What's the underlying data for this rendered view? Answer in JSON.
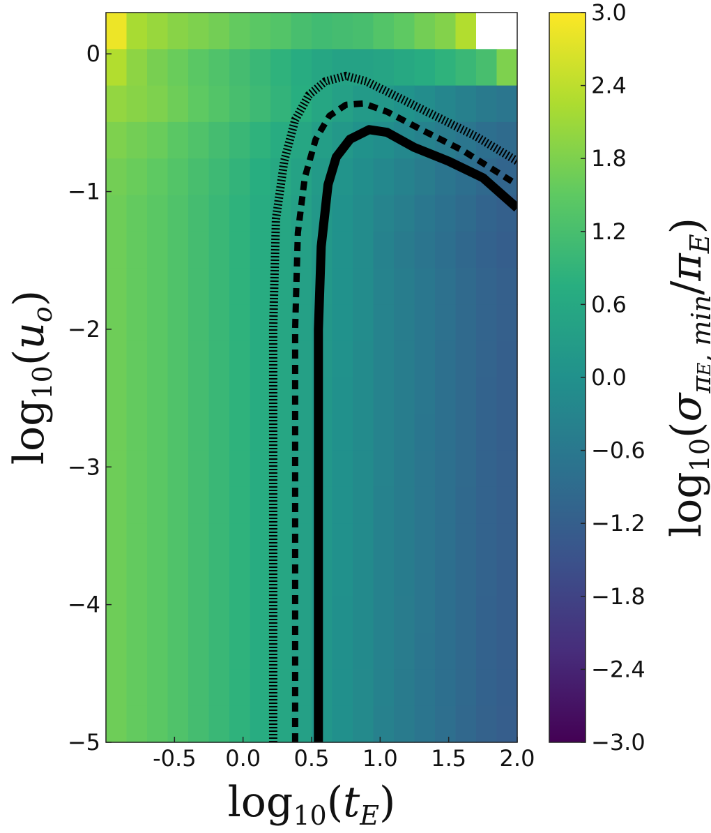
{
  "chart_data": {
    "type": "heatmap",
    "title": "",
    "xlabel": "log10(tE)",
    "ylabel": "log10(uo)",
    "colorbar_label": "log10(σπE,min/πE)",
    "x_range": [
      -1.0,
      2.0
    ],
    "y_range": [
      -5.0,
      0.3
    ],
    "x_ticks": [
      "-0.5",
      "0.0",
      "0.5",
      "1.0",
      "1.5",
      "2.0"
    ],
    "y_ticks": [
      "0",
      "−1",
      "−2",
      "−3",
      "−4",
      "−5"
    ],
    "colorbar_ticks": [
      "3.0",
      "2.4",
      "1.8",
      "1.2",
      "0.6",
      "0.0",
      "−0.6",
      "−1.2",
      "−1.8",
      "−2.4",
      "−3.0"
    ],
    "colorbar_range": [
      -3.0,
      3.0
    ],
    "colormap": "viridis",
    "grid_columns": 20,
    "grid_rows": 20,
    "column_base_values": [
      1.65,
      1.55,
      1.45,
      1.3,
      1.15,
      1.0,
      0.85,
      0.7,
      0.55,
      0.4,
      0.2,
      0.05,
      -0.1,
      -0.3,
      -0.45,
      -0.6,
      -0.75,
      -0.9,
      -1.05,
      -1.15
    ],
    "top_row_values": [
      2.85,
      2.2,
      2.05,
      1.9,
      1.8,
      1.7,
      1.55,
      1.45,
      1.35,
      1.2,
      1.1,
      1.15,
      1.2,
      1.35,
      1.5,
      1.7,
      1.85,
      2.3,
      null,
      null
    ],
    "second_row_values": [
      2.3,
      1.95,
      1.75,
      1.6,
      1.45,
      1.3,
      1.15,
      1.0,
      0.85,
      0.7,
      0.55,
      0.45,
      0.45,
      0.5,
      0.6,
      0.7,
      0.85,
      1.0,
      1.2,
      1.8
    ],
    "contours": [
      {
        "name": "solid contour",
        "style": "solid",
        "points": [
          [
            0.55,
            -5.0
          ],
          [
            0.55,
            -2.0
          ],
          [
            0.57,
            -1.4
          ],
          [
            0.62,
            -0.95
          ],
          [
            0.68,
            -0.75
          ],
          [
            0.78,
            -0.62
          ],
          [
            0.92,
            -0.55
          ],
          [
            1.05,
            -0.57
          ],
          [
            1.25,
            -0.68
          ],
          [
            1.5,
            -0.78
          ],
          [
            1.75,
            -0.9
          ],
          [
            2.0,
            -1.12
          ]
        ]
      },
      {
        "name": "dashed contour",
        "style": "dashed",
        "points": [
          [
            0.38,
            -5.0
          ],
          [
            0.38,
            -2.0
          ],
          [
            0.4,
            -1.3
          ],
          [
            0.45,
            -0.9
          ],
          [
            0.53,
            -0.62
          ],
          [
            0.63,
            -0.45
          ],
          [
            0.75,
            -0.37
          ],
          [
            0.88,
            -0.36
          ],
          [
            1.05,
            -0.42
          ],
          [
            1.3,
            -0.55
          ],
          [
            1.6,
            -0.7
          ],
          [
            2.0,
            -0.95
          ]
        ]
      },
      {
        "name": "dotted contour",
        "style": "dotted",
        "points": [
          [
            0.22,
            -5.0
          ],
          [
            0.22,
            -2.0
          ],
          [
            0.24,
            -1.2
          ],
          [
            0.3,
            -0.78
          ],
          [
            0.38,
            -0.48
          ],
          [
            0.48,
            -0.3
          ],
          [
            0.6,
            -0.2
          ],
          [
            0.75,
            -0.16
          ],
          [
            0.9,
            -0.2
          ],
          [
            1.1,
            -0.3
          ],
          [
            1.4,
            -0.45
          ],
          [
            1.7,
            -0.6
          ],
          [
            2.0,
            -0.78
          ]
        ]
      }
    ]
  }
}
